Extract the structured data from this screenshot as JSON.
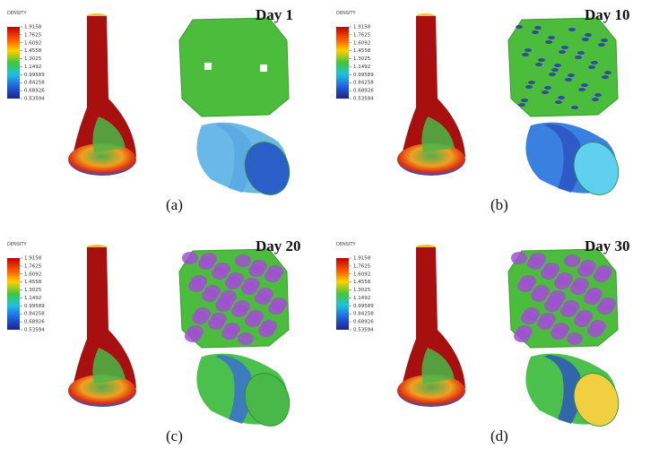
{
  "legend": {
    "title": "DENSITY",
    "ticks": [
      "1.9158",
      "1.7625",
      "1.6092",
      "1.4558",
      "1.3025",
      "1.1492",
      "0.99589",
      "0.84258",
      "0.68926",
      "0.53594"
    ]
  },
  "panels": [
    {
      "label": "(a)",
      "day": "Day 1"
    },
    {
      "label": "(b)",
      "day": "Day 10"
    },
    {
      "label": "(c)",
      "day": "Day 20"
    },
    {
      "label": "(d)",
      "day": "Day 30"
    }
  ]
}
